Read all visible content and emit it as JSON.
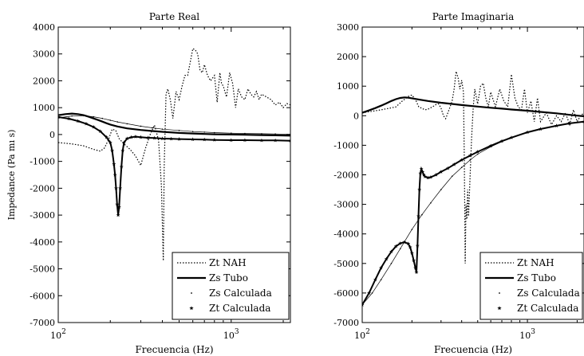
{
  "chart_data": [
    {
      "type": "line",
      "title": "Parte Real",
      "xlabel": "Frecuencia (Hz)",
      "ylabel": "Impedance (Pa mı s)",
      "xscale": "log",
      "xlim": [
        100,
        2200
      ],
      "ylim": [
        -7000,
        4000
      ],
      "yticks": [
        -7000,
        -6000,
        -5000,
        -4000,
        -3000,
        -2000,
        -1000,
        0,
        1000,
        2000,
        3000,
        4000
      ],
      "xticks": [
        {
          "value": 100,
          "base": "10",
          "exp": "2"
        },
        {
          "value": 1000,
          "base": "10",
          "exp": "3"
        }
      ],
      "legend": "bottom-right",
      "grid": false,
      "series": [
        {
          "name": "Zt NAH",
          "style": "dotted",
          "x": [
            100,
            120,
            140,
            160,
            175,
            185,
            195,
            205,
            215,
            225,
            240,
            260,
            280,
            300,
            320,
            340,
            360,
            380,
            395,
            405,
            410,
            420,
            430,
            445,
            460,
            480,
            500,
            520,
            540,
            560,
            580,
            600,
            620,
            640,
            660,
            680,
            700,
            730,
            760,
            800,
            830,
            860,
            880,
            900,
            940,
            980,
            1020,
            1060,
            1100,
            1150,
            1200,
            1250,
            1300,
            1350,
            1400,
            1450,
            1500,
            1600,
            1700,
            1800,
            1900,
            2000,
            2100,
            2200
          ],
          "y": [
            -300,
            -350,
            -420,
            -550,
            -620,
            -500,
            -200,
            200,
            150,
            -150,
            -350,
            -550,
            -800,
            -1150,
            -500,
            0,
            350,
            -200,
            -1900,
            -4700,
            -1200,
            1500,
            1700,
            1300,
            600,
            1600,
            1300,
            1800,
            2200,
            2200,
            2700,
            3200,
            3150,
            3000,
            2400,
            2300,
            2600,
            2200,
            2000,
            2200,
            1200,
            2300,
            1900,
            1800,
            1400,
            2300,
            1900,
            1000,
            1700,
            1400,
            1300,
            1700,
            1500,
            1400,
            1600,
            1300,
            1500,
            1400,
            1300,
            1100,
            1200,
            1000,
            1150,
            1100
          ]
        },
        {
          "name": "Zs Tubo",
          "style": "solid-thick",
          "x": [
            100,
            110,
            120,
            130,
            140,
            150,
            160,
            170,
            180,
            190,
            200,
            220,
            250,
            300,
            350,
            400,
            500,
            600,
            700,
            800,
            1000,
            1200,
            1500,
            1800,
            2200
          ],
          "y": [
            720,
            760,
            780,
            760,
            720,
            660,
            600,
            540,
            480,
            420,
            370,
            300,
            230,
            170,
            130,
            100,
            60,
            40,
            20,
            10,
            0,
            -10,
            -20,
            -30,
            -40
          ]
        },
        {
          "name": "Zs Calculada",
          "style": "dots",
          "x": [
            100,
            120,
            140,
            160,
            180,
            200,
            220,
            250,
            300,
            350,
            400,
            500,
            600,
            700,
            800,
            1000,
            1200,
            1500,
            1800,
            2200
          ],
          "y": [
            620,
            690,
            700,
            660,
            600,
            530,
            470,
            400,
            310,
            250,
            200,
            150,
            110,
            90,
            70,
            50,
            40,
            30,
            20,
            10
          ]
        },
        {
          "name": "Zt Calculada",
          "style": "stars",
          "x": [
            100,
            115,
            130,
            145,
            160,
            175,
            190,
            200,
            205,
            210,
            213,
            216,
            219,
            222,
            225,
            228,
            232,
            236,
            240,
            250,
            265,
            280,
            300,
            330,
            360,
            400,
            450,
            500,
            600,
            700,
            800,
            1000,
            1200,
            1500,
            1800,
            2200
          ],
          "y": [
            650,
            590,
            500,
            400,
            280,
            120,
            -100,
            -300,
            -600,
            -1100,
            -1500,
            -2000,
            -2600,
            -3000,
            -2700,
            -2000,
            -1200,
            -600,
            -300,
            -150,
            -100,
            -80,
            -100,
            -120,
            -130,
            -150,
            -160,
            -170,
            -180,
            -190,
            -200,
            -210,
            -210,
            -220,
            -220,
            -230
          ]
        }
      ]
    },
    {
      "type": "line",
      "title": "Parte Imaginaria",
      "xlabel": "Frecuencia (Hz)",
      "ylabel": "",
      "xscale": "log",
      "xlim": [
        100,
        2200
      ],
      "ylim": [
        -7000,
        3000
      ],
      "yticks": [
        -7000,
        -6000,
        -5000,
        -4000,
        -3000,
        -2000,
        -1000,
        0,
        1000,
        2000,
        3000
      ],
      "xticks": [
        {
          "value": 100,
          "base": "10",
          "exp": "2"
        },
        {
          "value": 1000,
          "base": "10",
          "exp": "3"
        }
      ],
      "legend": "bottom-right",
      "grid": false,
      "series": [
        {
          "name": "Zt NAH",
          "style": "dotted",
          "x": [
            100,
            115,
            130,
            145,
            160,
            175,
            190,
            200,
            210,
            220,
            230,
            240,
            250,
            260,
            270,
            280,
            290,
            300,
            310,
            320,
            330,
            340,
            350,
            360,
            370,
            380,
            390,
            400,
            410,
            415,
            420,
            425,
            430,
            435,
            440,
            450,
            460,
            470,
            480,
            500,
            520,
            540,
            560,
            580,
            600,
            640,
            680,
            720,
            760,
            800,
            840,
            880,
            920,
            960,
            1000,
            1050,
            1100,
            1150,
            1200,
            1300,
            1400,
            1500,
            1600,
            1700,
            1800,
            1900,
            2000,
            2100,
            2200
          ],
          "y": [
            100,
            150,
            200,
            250,
            300,
            500,
            650,
            700,
            550,
            300,
            250,
            200,
            220,
            270,
            320,
            380,
            400,
            260,
            0,
            -100,
            100,
            300,
            500,
            900,
            1500,
            1300,
            900,
            1200,
            800,
            -1500,
            -5000,
            -3000,
            -3500,
            -2500,
            -3400,
            -2000,
            -700,
            300,
            900,
            400,
            1000,
            1100,
            600,
            300,
            800,
            300,
            900,
            500,
            300,
            1400,
            600,
            300,
            200,
            900,
            100,
            500,
            -200,
            600,
            -200,
            100,
            -300,
            0,
            -200,
            100,
            -300,
            200,
            -200,
            0,
            100
          ]
        },
        {
          "name": "Zs Tubo",
          "style": "solid-thick",
          "x": [
            100,
            110,
            120,
            130,
            140,
            150,
            160,
            170,
            180,
            190,
            200,
            220,
            250,
            300,
            350,
            400,
            500,
            600,
            700,
            800,
            1000,
            1200,
            1500,
            1800,
            2200
          ],
          "y": [
            100,
            180,
            260,
            340,
            420,
            500,
            560,
            600,
            620,
            610,
            590,
            550,
            500,
            440,
            400,
            360,
            310,
            270,
            240,
            210,
            170,
            130,
            80,
            30,
            -20
          ]
        },
        {
          "name": "Zs Calculada",
          "style": "dots",
          "x": [
            100,
            115,
            130,
            150,
            170,
            200,
            230,
            260,
            300,
            350,
            400,
            450,
            500,
            600,
            700,
            800,
            1000,
            1200,
            1500,
            1800,
            2200
          ],
          "y": [
            -6400,
            -6000,
            -5550,
            -5000,
            -4500,
            -3850,
            -3350,
            -2950,
            -2500,
            -2050,
            -1750,
            -1500,
            -1300,
            -1050,
            -880,
            -750,
            -560,
            -450,
            -340,
            -260,
            -200
          ]
        },
        {
          "name": "Zt Calculada",
          "style": "stars",
          "x": [
            100,
            110,
            120,
            130,
            140,
            150,
            160,
            170,
            180,
            190,
            195,
            200,
            205,
            210,
            213,
            216,
            219,
            222,
            225,
            228,
            232,
            236,
            240,
            250,
            260,
            280,
            300,
            330,
            360,
            400,
            450,
            500,
            600,
            700,
            800,
            1000,
            1200,
            1500,
            1800,
            2200
          ],
          "y": [
            -6400,
            -6000,
            -5550,
            -5150,
            -4850,
            -4600,
            -4420,
            -4320,
            -4280,
            -4330,
            -4450,
            -4650,
            -4900,
            -5150,
            -5300,
            -4400,
            -3400,
            -2500,
            -1950,
            -1800,
            -1900,
            -2000,
            -2060,
            -2100,
            -2080,
            -2000,
            -1900,
            -1780,
            -1650,
            -1500,
            -1350,
            -1220,
            -1020,
            -860,
            -740,
            -560,
            -450,
            -340,
            -260,
            -200
          ]
        }
      ]
    }
  ]
}
